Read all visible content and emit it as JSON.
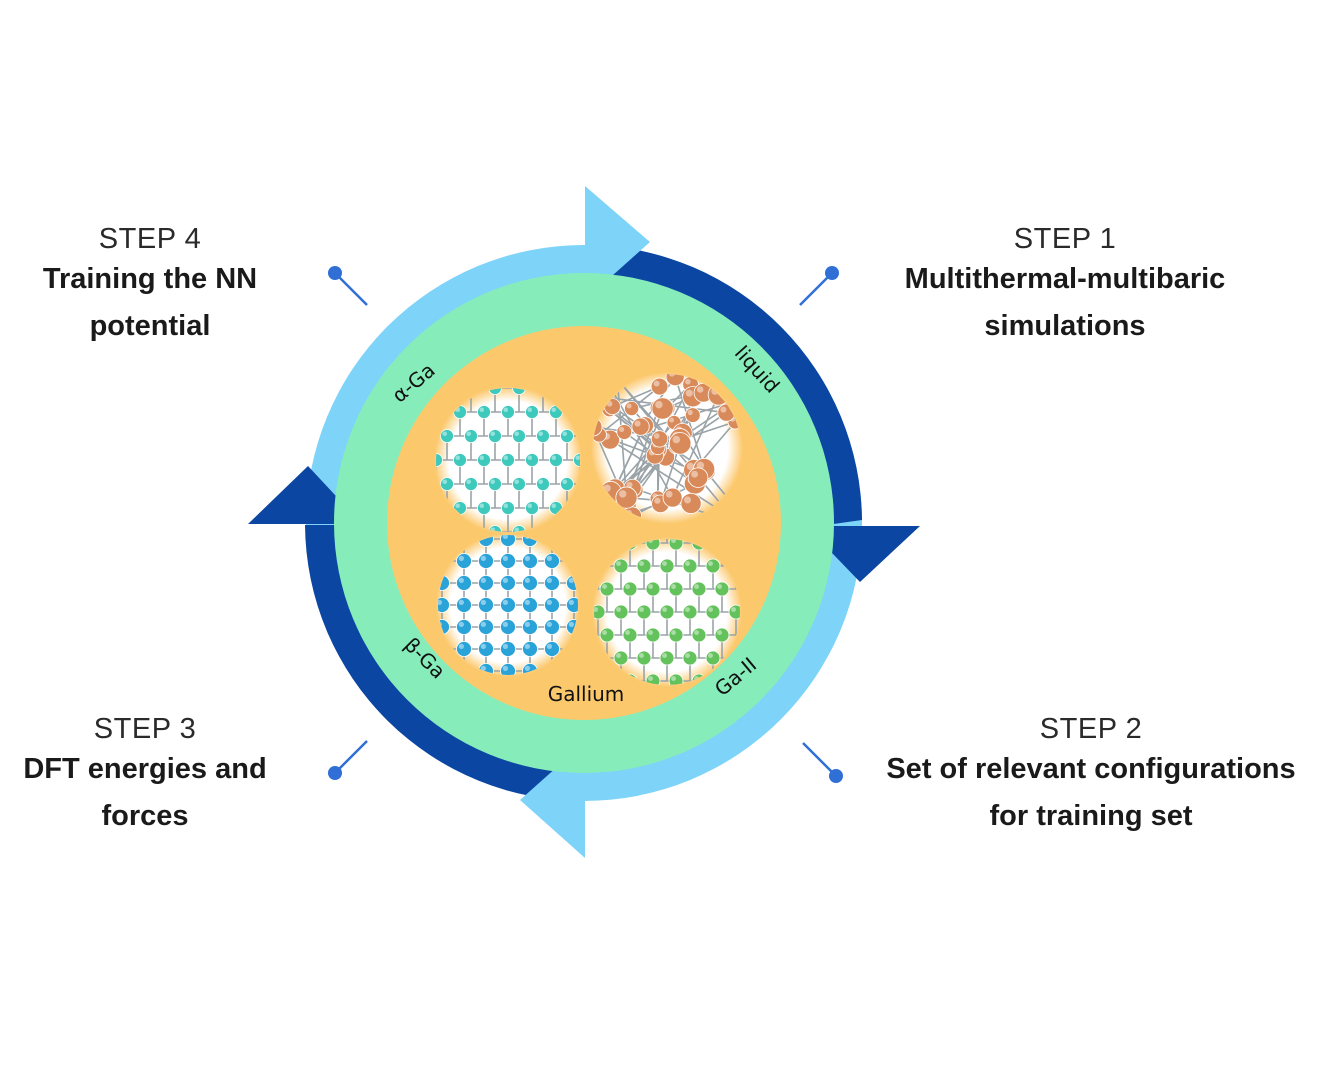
{
  "steps": [
    {
      "id": "step1",
      "number": "STEP 1",
      "title_lines": [
        "Multithermal-multibaric",
        "simulations"
      ]
    },
    {
      "id": "step2",
      "number": "STEP 2",
      "title_lines": [
        "Set of relevant configurations",
        "for training set"
      ]
    },
    {
      "id": "step3",
      "number": "STEP 3",
      "title_lines": [
        "DFT energies and",
        "forces"
      ]
    },
    {
      "id": "step4",
      "number": "STEP 4",
      "title_lines": [
        "Training the NN",
        "potential"
      ]
    }
  ],
  "center": {
    "label": "Gallium",
    "phases": {
      "alpha": "α-Ga",
      "liquid": "liquid",
      "beta": "β-Ga",
      "ga2": "Ga-II"
    }
  },
  "colors": {
    "light_blue": "#7dd3f8",
    "dark_blue": "#0b46a3",
    "green": "#86edba",
    "orange": "#fcc86c",
    "connector": "#2f6fd6",
    "alpha_atom": "#3ec9bd",
    "liquid_atom": "#d98a5a",
    "beta_atom": "#2aa3d9",
    "ga2_atom": "#63c25c"
  }
}
